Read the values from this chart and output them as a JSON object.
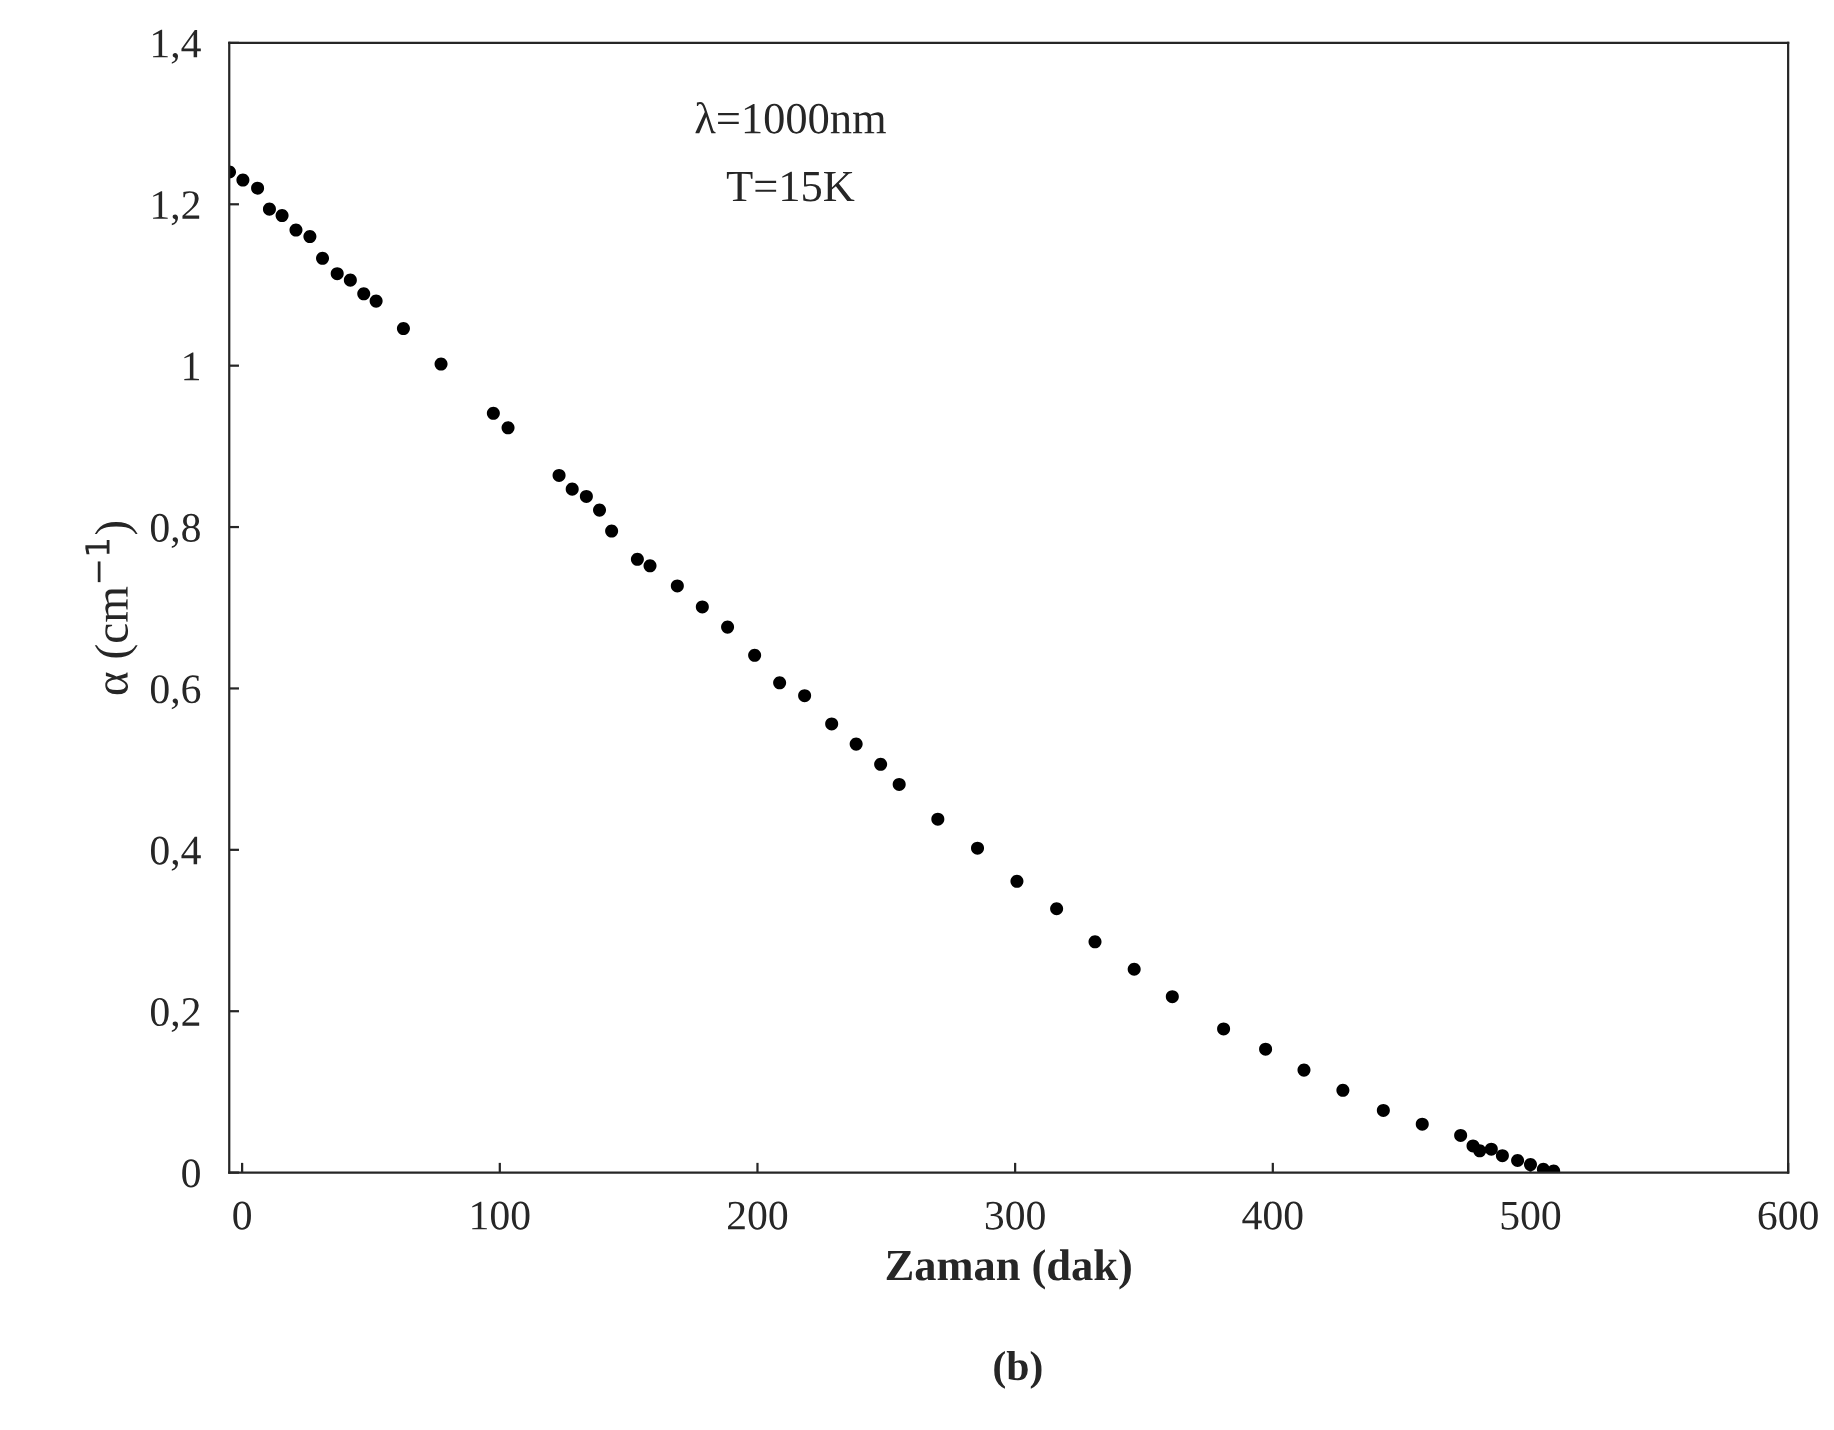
{
  "chart_data": {
    "type": "scatter",
    "xlabel": "Zaman (dak)",
    "ylabel": "α (cm$^{−1}$)",
    "annotations": [
      "λ=1000nm",
      "T=15K",
      "(b)"
    ],
    "x": [
      -4.9,
      0.3,
      6.0,
      10.6,
      15.5,
      20.9,
      26.3,
      31.2,
      36.9,
      42.0,
      47.2,
      52.0,
      62.6,
      77.2,
      97.5,
      103.2,
      123.0,
      128.1,
      133.6,
      138.7,
      143.4,
      153.4,
      158.3,
      168.9,
      178.6,
      188.4,
      198.9,
      208.6,
      218.3,
      228.8,
      238.3,
      247.8,
      255.0,
      270.0,
      285.4,
      300.7,
      316.1,
      331.0,
      346.2,
      361.0,
      380.9,
      397.2,
      412.1,
      427.2,
      442.9,
      458.0,
      472.9,
      477.7,
      480.3,
      484.8,
      489.1,
      495,
      500,
      505,
      509
    ],
    "series": [
      {
        "color": "#000000",
        "values": [
          1.24,
          1.23,
          1.22,
          1.194,
          1.186,
          1.168,
          1.16,
          1.133,
          1.114,
          1.106,
          1.089,
          1.08,
          1.046,
          1.002,
          0.941,
          0.923,
          0.864,
          0.847,
          0.838,
          0.821,
          0.795,
          0.76,
          0.752,
          0.727,
          0.701,
          0.676,
          0.641,
          0.607,
          0.591,
          0.556,
          0.531,
          0.506,
          0.481,
          0.438,
          0.402,
          0.361,
          0.327,
          0.286,
          0.252,
          0.218,
          0.178,
          0.153,
          0.127,
          0.102,
          0.077,
          0.06,
          0.046,
          0.033,
          0.027,
          0.029,
          0.021,
          0.015,
          0.01,
          0.004,
          0.002
        ]
      }
    ],
    "xlim": [
      -5,
      600
    ],
    "xticks": [
      0,
      100,
      200,
      300,
      400,
      500,
      600
    ],
    "ylim": [
      0,
      1.4
    ],
    "yticks": [
      {
        "value": 0,
        "label": "0"
      },
      {
        "value": 0.2,
        "label": "0,2"
      },
      {
        "value": 0.4,
        "label": "0,4"
      },
      {
        "value": 0.6,
        "label": "0,6"
      },
      {
        "value": 0.8,
        "label": "0,8"
      },
      {
        "value": 1,
        "label": "1"
      },
      {
        "value": 1.2,
        "label": "1,2"
      },
      {
        "value": 1.4,
        "label": "1,4"
      }
    ],
    "marker": "circle",
    "grid": false,
    "legend": false
  }
}
